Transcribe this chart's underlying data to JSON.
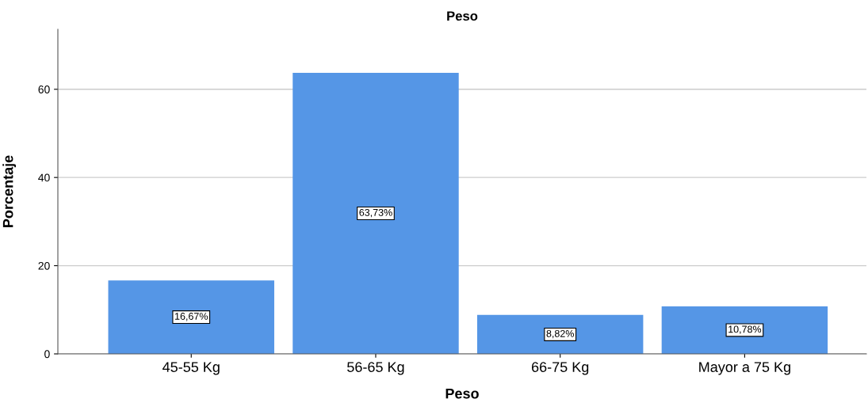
{
  "chart_data": {
    "type": "bar",
    "title": "Peso",
    "xlabel": "Peso",
    "ylabel": "Porcentaje",
    "categories": [
      "45-55 Kg",
      "56-65 Kg",
      "66-75 Kg",
      "Mayor a 75 Kg"
    ],
    "values": [
      16.67,
      63.73,
      8.82,
      10.78
    ],
    "value_labels": [
      "16,67%",
      "63,73%",
      "8,82%",
      "10,78%"
    ],
    "color": "#5596e6",
    "ylim": [
      0,
      73.6
    ],
    "yticks": [
      0,
      20,
      40,
      60
    ],
    "grid": "y"
  }
}
